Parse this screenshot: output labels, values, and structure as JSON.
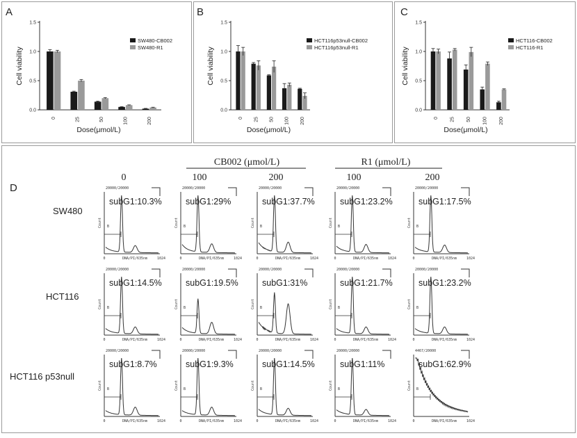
{
  "chart_data": [
    {
      "id": "A",
      "type": "bar",
      "panel_label": "A",
      "ylabel": "Cell viability",
      "xlabel": "Dose(μmol/L)",
      "ylim": [
        0,
        1.5
      ],
      "yticks": [
        "0.0",
        "0.5",
        "1.0",
        "1.5"
      ],
      "categories": [
        "0",
        "25",
        "50",
        "100",
        "200"
      ],
      "series": [
        {
          "name": "SW480-CB002",
          "color": "#1a1a1a",
          "values": [
            1.0,
            0.31,
            0.14,
            0.05,
            0.02
          ],
          "errors": [
            0.03,
            0.01,
            0.01,
            0.005,
            0.005
          ]
        },
        {
          "name": "SW480-R1",
          "color": "#9a9a9a",
          "values": [
            1.0,
            0.5,
            0.2,
            0.08,
            0.04
          ],
          "errors": [
            0.02,
            0.02,
            0.01,
            0.005,
            0.005
          ]
        }
      ]
    },
    {
      "id": "B",
      "type": "bar",
      "panel_label": "B",
      "ylabel": "Cell viability",
      "xlabel": "Dose(μmol/L)",
      "ylim": [
        0,
        1.5
      ],
      "yticks": [
        "0.0",
        "0.5",
        "1.0",
        "1.5"
      ],
      "categories": [
        "0",
        "25",
        "50",
        "100",
        "200"
      ],
      "series": [
        {
          "name": "HCT116p53null-CB002",
          "color": "#1a1a1a",
          "values": [
            1.0,
            0.79,
            0.59,
            0.37,
            0.36
          ],
          "errors": [
            0.1,
            0.02,
            0.01,
            0.08,
            0.01
          ]
        },
        {
          "name": "HCT116p53null-R1",
          "color": "#9a9a9a",
          "values": [
            1.0,
            0.76,
            0.74,
            0.43,
            0.24
          ],
          "errors": [
            0.07,
            0.08,
            0.1,
            0.03,
            0.05
          ]
        }
      ]
    },
    {
      "id": "C",
      "type": "bar",
      "panel_label": "C",
      "ylabel": "Cell viability",
      "xlabel": "Dose(μmol/L)",
      "ylim": [
        0,
        1.5
      ],
      "yticks": [
        "0.0",
        "0.5",
        "1.0",
        "1.5"
      ],
      "categories": [
        "0",
        "25",
        "50",
        "100",
        "200"
      ],
      "series": [
        {
          "name": "HCT116-CB002",
          "color": "#1a1a1a",
          "values": [
            1.0,
            0.88,
            0.69,
            0.35,
            0.13
          ],
          "errors": [
            0.05,
            0.11,
            0.08,
            0.04,
            0.02
          ]
        },
        {
          "name": "HCT116-R1",
          "color": "#9a9a9a",
          "values": [
            1.0,
            1.03,
            0.99,
            0.79,
            0.35
          ],
          "errors": [
            0.04,
            0.02,
            0.08,
            0.03,
            0.01
          ]
        }
      ]
    }
  ],
  "panel_d": {
    "label": "D",
    "group_headers": {
      "cb002": "CB002 (μmol/L)",
      "r1": "R1 (μmol/L)"
    },
    "column_headers": [
      "0",
      "100",
      "200",
      "100",
      "200"
    ],
    "rows": [
      {
        "label": "SW480",
        "subg1": [
          "subG1:10.3%",
          "subG1:29%",
          "subG1:37.7%",
          "subG1:23.2%",
          "subG1:17.5%"
        ]
      },
      {
        "label": "HCT116",
        "subg1": [
          "subG1:14.5%",
          "subG1:19.5%",
          "subG1:31%",
          "subG1:21.7%",
          "subG1:23.2%"
        ]
      },
      {
        "label": "HCT116 p53null",
        "subg1": [
          "subG1:8.7%",
          "subG1:9.3%",
          "subG1:14.5%",
          "subG1:11%",
          "subG1:62.9%"
        ]
      }
    ],
    "plot_texts": {
      "events": "20000/20000",
      "events_alt": "4467/20000",
      "xaxis": "DNA/PI/635nm",
      "ylab": "Count",
      "xmax": "1024",
      "xmin": "0",
      "gate": "B"
    }
  }
}
